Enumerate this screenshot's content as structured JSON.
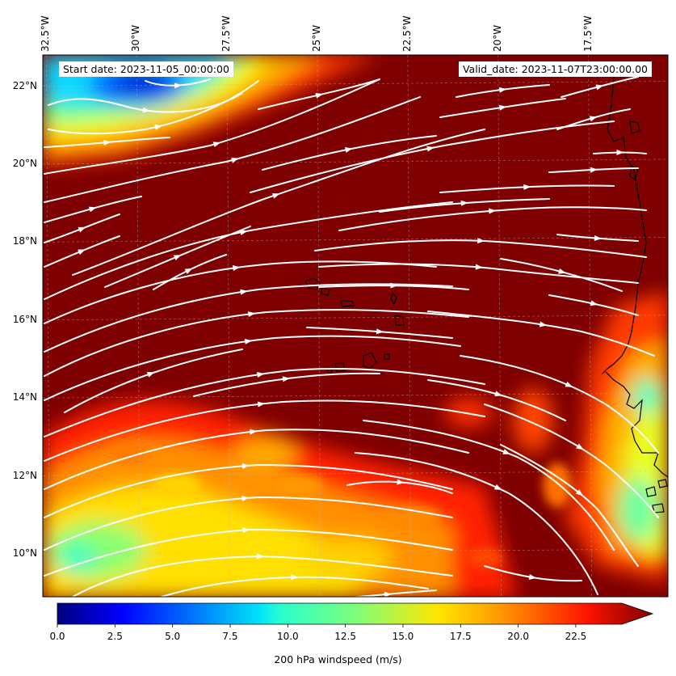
{
  "map": {
    "start_date": "Start date: 2023-11-05_00:00:00",
    "valid_date": "Valid_date: 2023-11-07T23:00:00.00",
    "lon_labels": [
      "32.5°W",
      "30°W",
      "27.5°W",
      "25°W",
      "22.5°W",
      "20°W",
      "17.5°W"
    ],
    "lat_labels": [
      "22°N",
      "20°N",
      "18°N",
      "16°N",
      "14°N",
      "12°N",
      "10°N"
    ],
    "extent": {
      "lon_min": -32.6,
      "lon_max": -15.3,
      "lat_min": 8.9,
      "lat_max": 22.8
    },
    "field": "200 hPa windspeed",
    "streamline_color": "#ffffff",
    "coastline_color": "#000000"
  },
  "colorbar": {
    "label": "200 hPa windspeed (m/s)",
    "ticks": [
      "0.0",
      "2.5",
      "5.0",
      "7.5",
      "10.0",
      "12.5",
      "15.0",
      "17.5",
      "20.0",
      "22.5"
    ],
    "range": [
      0,
      24.5
    ],
    "extend": "max",
    "colormap": "jet"
  }
}
